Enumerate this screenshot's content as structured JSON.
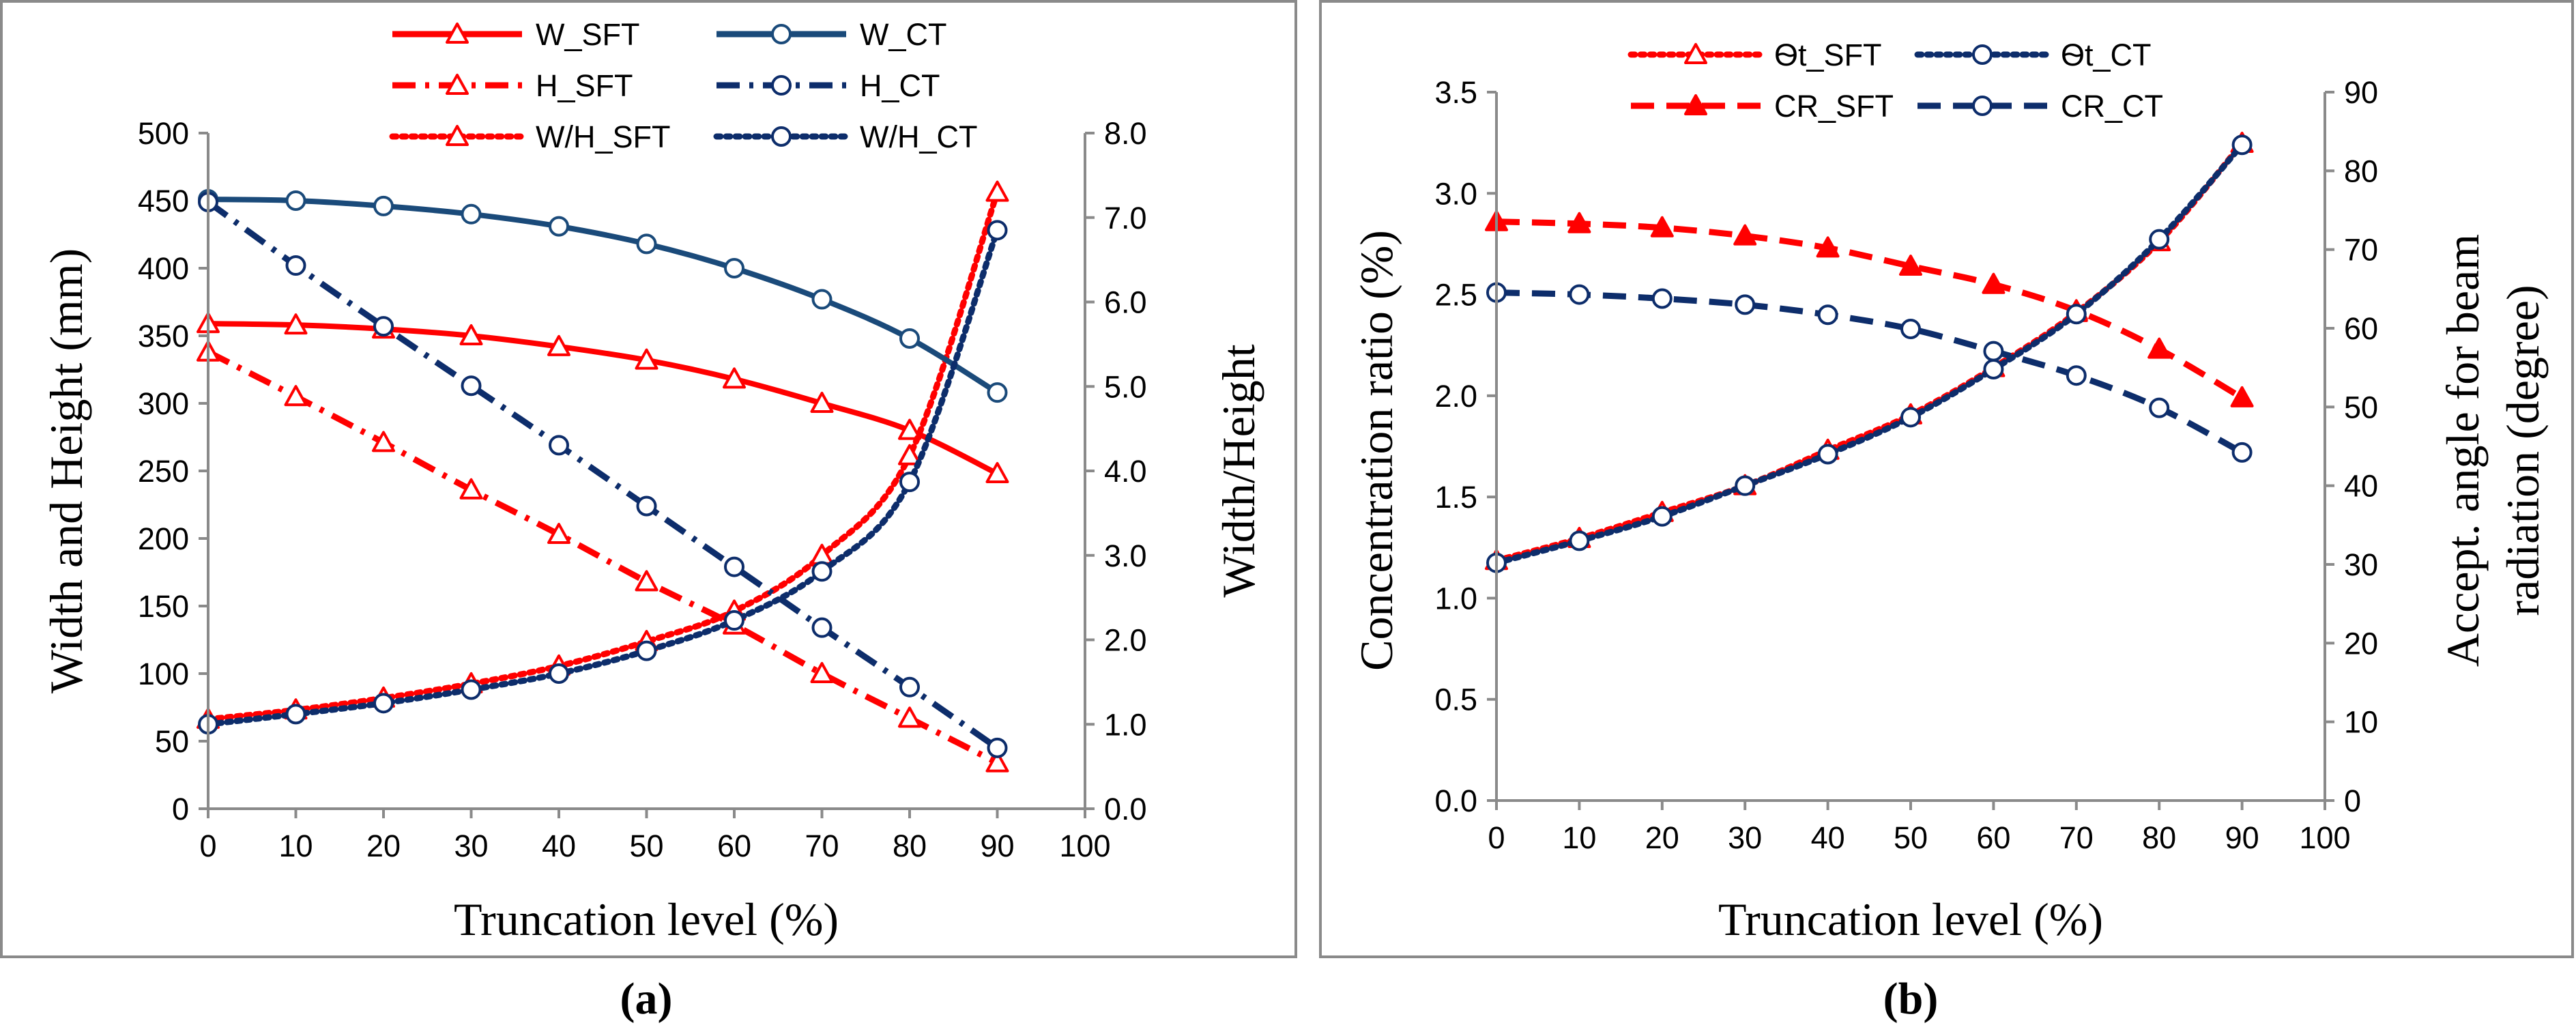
{
  "chart_data": [
    {
      "type": "line",
      "caption": "(a)",
      "xlabel": "Truncation level (%)",
      "ylabel": "Width and Height (mm)",
      "y2label": "Width/Height",
      "x_ticks": [
        "0",
        "10",
        "20",
        "30",
        "40",
        "50",
        "60",
        "70",
        "80",
        "90",
        "100"
      ],
      "y_ticks": [
        "0",
        "50",
        "100",
        "150",
        "200",
        "250",
        "300",
        "350",
        "400",
        "450",
        "500"
      ],
      "y2_ticks": [
        "0.0",
        "1.0",
        "2.0",
        "3.0",
        "4.0",
        "5.0",
        "6.0",
        "7.0",
        "8.0"
      ],
      "xlim": [
        0,
        100
      ],
      "ylim": [
        0,
        500
      ],
      "y2lim": [
        0,
        8
      ],
      "grid": false,
      "legend_placement": "top",
      "x": [
        0,
        10,
        20,
        30,
        40,
        50,
        60,
        70,
        80,
        90
      ],
      "series": [
        {
          "name": "W_SFT",
          "axis": "left",
          "color": "#ff0000",
          "style": "solid",
          "marker": "triangle",
          "values": [
            359,
            358,
            355,
            350,
            342,
            332,
            318,
            300,
            280,
            248
          ]
        },
        {
          "name": "H_SFT",
          "axis": "left",
          "color": "#ff0000",
          "style": "dashdot",
          "marker": "triangle",
          "values": [
            338,
            305,
            271,
            236,
            203,
            168,
            136,
            100,
            67,
            34
          ]
        },
        {
          "name": "W/H_SFT",
          "axis": "right",
          "color": "#ff0000",
          "style": "dotted",
          "marker": "triangle",
          "values": [
            1.06,
            1.17,
            1.31,
            1.48,
            1.69,
            1.98,
            2.34,
            3.0,
            4.18,
            7.3
          ]
        },
        {
          "name": "W_CT",
          "axis": "left",
          "color": "#1a4a7a",
          "style": "solid",
          "marker": "circle",
          "values": [
            451,
            450,
            446,
            440,
            431,
            418,
            400,
            377,
            348,
            308
          ]
        },
        {
          "name": "H_CT",
          "axis": "left",
          "color": "#0d2d6b",
          "style": "dashdot",
          "marker": "circle",
          "values": [
            449,
            402,
            357,
            313,
            269,
            224,
            179,
            134,
            90,
            45
          ]
        },
        {
          "name": "W/H_CT",
          "axis": "right",
          "color": "#0d2d6b",
          "style": "dotted",
          "marker": "circle",
          "values": [
            1.0,
            1.12,
            1.25,
            1.41,
            1.6,
            1.87,
            2.23,
            2.81,
            3.87,
            6.85
          ]
        }
      ]
    },
    {
      "type": "line",
      "caption": "(b)",
      "xlabel": "Truncation level (%)",
      "ylabel": "Concentration ratio (%)",
      "y2label_lines": [
        "Accept. angle for beam",
        "radiation (degree)"
      ],
      "x_ticks": [
        "0",
        "10",
        "20",
        "30",
        "40",
        "50",
        "60",
        "70",
        "80",
        "90",
        "100"
      ],
      "y_ticks": [
        "0.0",
        "0.5",
        "1.0",
        "1.5",
        "2.0",
        "2.5",
        "3.0",
        "3.5"
      ],
      "y2_ticks": [
        "0",
        "10",
        "20",
        "30",
        "40",
        "50",
        "60",
        "70",
        "80",
        "90"
      ],
      "xlim": [
        0,
        100
      ],
      "ylim": [
        0,
        3.5
      ],
      "y2lim": [
        0,
        90
      ],
      "grid": false,
      "legend_placement": "top",
      "x": [
        0,
        10,
        20,
        30,
        40,
        50,
        60,
        70,
        80,
        90
      ],
      "series": [
        {
          "name": "Ѳt_SFT",
          "axis": "right",
          "color": "#ff0000",
          "style": "dotted",
          "marker": "triangle-open",
          "values": [
            30.5,
            33.3,
            36.6,
            40,
            44.5,
            49,
            55,
            62,
            71,
            83.5
          ]
        },
        {
          "name": "CR_SFT",
          "axis": "left",
          "color": "#ff0000",
          "style": "dashed",
          "marker": "triangle-filled",
          "values": [
            2.86,
            2.85,
            2.83,
            2.79,
            2.73,
            2.64,
            2.55,
            2.42,
            2.23,
            1.99
          ]
        },
        {
          "name": "Ѳt_CT",
          "axis": "right",
          "color": "#0d2d6b",
          "style": "dotted",
          "marker": "circle",
          "values": [
            30.2,
            33,
            36.1,
            40,
            44,
            48.7,
            54.8,
            61.8,
            71.3,
            83.3
          ]
        },
        {
          "name": "CR_CT",
          "axis": "left",
          "color": "#0d2d6b",
          "style": "dashed",
          "marker": "circle",
          "values": [
            2.51,
            2.5,
            2.48,
            2.45,
            2.4,
            2.33,
            2.22,
            2.1,
            1.94,
            1.72
          ]
        }
      ]
    }
  ]
}
